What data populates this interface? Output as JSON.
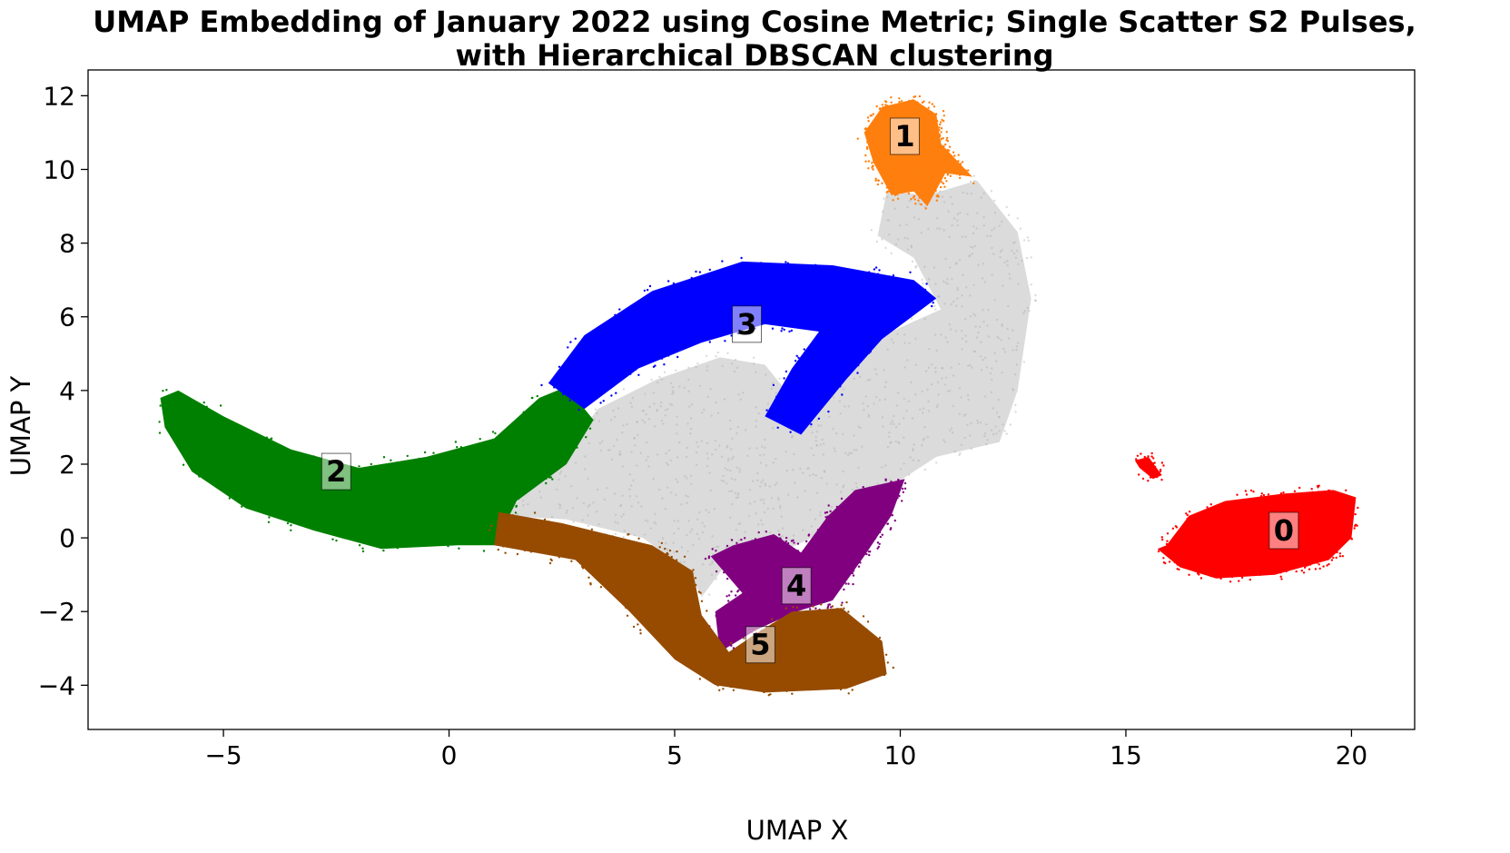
{
  "chart_data": {
    "type": "scatter",
    "title": "UMAP Embedding of January 2022 using Cosine Metric; Single Scatter S2 Pulses,",
    "subtitle": "with Hierarchical DBSCAN clustering",
    "xlabel": "UMAP X",
    "ylabel": "UMAP Y",
    "xlim": [
      -8,
      21.4
    ],
    "ylim": [
      -5.2,
      12.7
    ],
    "xticks": [
      -5,
      0,
      5,
      10,
      15,
      20
    ],
    "yticks": [
      -4,
      -2,
      0,
      2,
      4,
      6,
      8,
      10,
      12
    ],
    "xtick_labels": [
      "−5",
      "0",
      "5",
      "10",
      "15",
      "20"
    ],
    "ytick_labels": [
      "−4",
      "−2",
      "0",
      "2",
      "4",
      "6",
      "8",
      "10",
      "12"
    ],
    "grid": false,
    "colors": {
      "noise": "#b0b0b0",
      "0": "#ff0000",
      "1": "#ff7f0e",
      "2": "#008000",
      "3": "#0000ff",
      "4": "#800080",
      "5": "#964b00"
    },
    "clusters": [
      {
        "label": "0",
        "x": 18.5,
        "y": 0.2,
        "color": "#ff0000",
        "outline": [
          [
            15.9,
            -0.2
          ],
          [
            16.4,
            0.6
          ],
          [
            17.2,
            1.0
          ],
          [
            18.5,
            1.2
          ],
          [
            19.6,
            1.3
          ],
          [
            20.1,
            1.1
          ],
          [
            20.0,
            0.0
          ],
          [
            19.5,
            -0.6
          ],
          [
            18.3,
            -1.0
          ],
          [
            17.0,
            -1.1
          ],
          [
            16.2,
            -0.8
          ],
          [
            15.7,
            -0.3
          ]
        ]
      },
      {
        "label": "1",
        "x": 10.1,
        "y": 10.9,
        "color": "#ff7f0e",
        "outline": [
          [
            9.2,
            11.0
          ],
          [
            9.6,
            11.7
          ],
          [
            10.3,
            11.9
          ],
          [
            10.8,
            11.5
          ],
          [
            10.9,
            10.7
          ],
          [
            11.6,
            9.8
          ],
          [
            11.0,
            9.9
          ],
          [
            10.6,
            9.0
          ],
          [
            10.3,
            9.4
          ],
          [
            9.8,
            9.3
          ],
          [
            9.4,
            10.2
          ]
        ]
      },
      {
        "label": "2",
        "x": -2.5,
        "y": 1.8,
        "color": "#008000",
        "outline": [
          [
            -6.4,
            3.8
          ],
          [
            -6.0,
            4.0
          ],
          [
            -5.0,
            3.3
          ],
          [
            -3.5,
            2.4
          ],
          [
            -2.0,
            1.9
          ],
          [
            -0.5,
            2.2
          ],
          [
            1.0,
            2.7
          ],
          [
            2.0,
            3.8
          ],
          [
            2.6,
            4.1
          ],
          [
            3.2,
            3.2
          ],
          [
            2.6,
            2.0
          ],
          [
            1.5,
            1.0
          ],
          [
            1.0,
            -0.2
          ],
          [
            0.2,
            -0.2
          ],
          [
            -1.5,
            -0.3
          ],
          [
            -3.0,
            0.2
          ],
          [
            -4.5,
            0.8
          ],
          [
            -5.7,
            1.8
          ],
          [
            -6.3,
            3.0
          ]
        ]
      },
      {
        "label": "3",
        "x": 6.6,
        "y": 5.8,
        "color": "#0000ff",
        "outline": [
          [
            2.2,
            4.2
          ],
          [
            3.0,
            5.5
          ],
          [
            4.5,
            6.7
          ],
          [
            6.5,
            7.5
          ],
          [
            8.5,
            7.4
          ],
          [
            10.3,
            7.0
          ],
          [
            10.8,
            6.5
          ],
          [
            9.6,
            5.4
          ],
          [
            8.8,
            4.3
          ],
          [
            7.8,
            2.8
          ],
          [
            7.0,
            3.3
          ],
          [
            7.6,
            4.6
          ],
          [
            8.2,
            5.6
          ],
          [
            7.0,
            5.8
          ],
          [
            5.6,
            5.3
          ],
          [
            4.2,
            4.6
          ],
          [
            3.0,
            3.5
          ]
        ]
      },
      {
        "label": "4",
        "x": 7.7,
        "y": -1.3,
        "color": "#800080",
        "outline": [
          [
            5.8,
            -0.5
          ],
          [
            6.3,
            -0.2
          ],
          [
            7.2,
            0.1
          ],
          [
            7.8,
            -0.4
          ],
          [
            8.4,
            0.6
          ],
          [
            9.0,
            1.3
          ],
          [
            10.1,
            1.6
          ],
          [
            9.8,
            0.6
          ],
          [
            9.2,
            -0.5
          ],
          [
            8.5,
            -1.7
          ],
          [
            7.7,
            -2.0
          ],
          [
            6.8,
            -2.5
          ],
          [
            6.0,
            -3.1
          ],
          [
            5.9,
            -2.0
          ],
          [
            6.5,
            -1.5
          ]
        ]
      },
      {
        "label": "5",
        "x": 6.9,
        "y": -2.9,
        "color": "#964b00",
        "outline": [
          [
            1.0,
            -0.2
          ],
          [
            1.1,
            0.7
          ],
          [
            2.5,
            0.4
          ],
          [
            4.5,
            -0.2
          ],
          [
            5.4,
            -0.9
          ],
          [
            5.6,
            -2.1
          ],
          [
            6.2,
            -3.1
          ],
          [
            6.8,
            -2.6
          ],
          [
            7.6,
            -2.0
          ],
          [
            8.7,
            -1.9
          ],
          [
            9.6,
            -2.8
          ],
          [
            9.7,
            -3.7
          ],
          [
            8.8,
            -4.1
          ],
          [
            7.0,
            -4.2
          ],
          [
            5.9,
            -4.0
          ],
          [
            5.0,
            -3.3
          ],
          [
            4.0,
            -2.0
          ],
          [
            2.8,
            -0.6
          ]
        ]
      }
    ],
    "noise_region": {
      "color": "#b0b0b0",
      "outline": [
        [
          1.2,
          0.6
        ],
        [
          2.5,
          2.2
        ],
        [
          3.3,
          3.5
        ],
        [
          4.6,
          4.3
        ],
        [
          6.0,
          4.9
        ],
        [
          7.0,
          4.7
        ],
        [
          7.6,
          3.8
        ],
        [
          8.6,
          4.6
        ],
        [
          9.8,
          5.6
        ],
        [
          10.9,
          6.2
        ],
        [
          10.3,
          7.6
        ],
        [
          9.5,
          8.2
        ],
        [
          9.7,
          9.4
        ],
        [
          10.6,
          9.3
        ],
        [
          11.7,
          9.7
        ],
        [
          12.6,
          8.3
        ],
        [
          12.9,
          6.5
        ],
        [
          12.6,
          4.0
        ],
        [
          12.2,
          2.6
        ],
        [
          10.8,
          2.2
        ],
        [
          9.8,
          1.4
        ],
        [
          8.6,
          0.3
        ],
        [
          7.5,
          -0.3
        ],
        [
          6.4,
          -0.3
        ],
        [
          5.6,
          -1.6
        ],
        [
          5.3,
          -0.9
        ],
        [
          4.3,
          0.0
        ],
        [
          2.6,
          0.5
        ]
      ]
    }
  }
}
